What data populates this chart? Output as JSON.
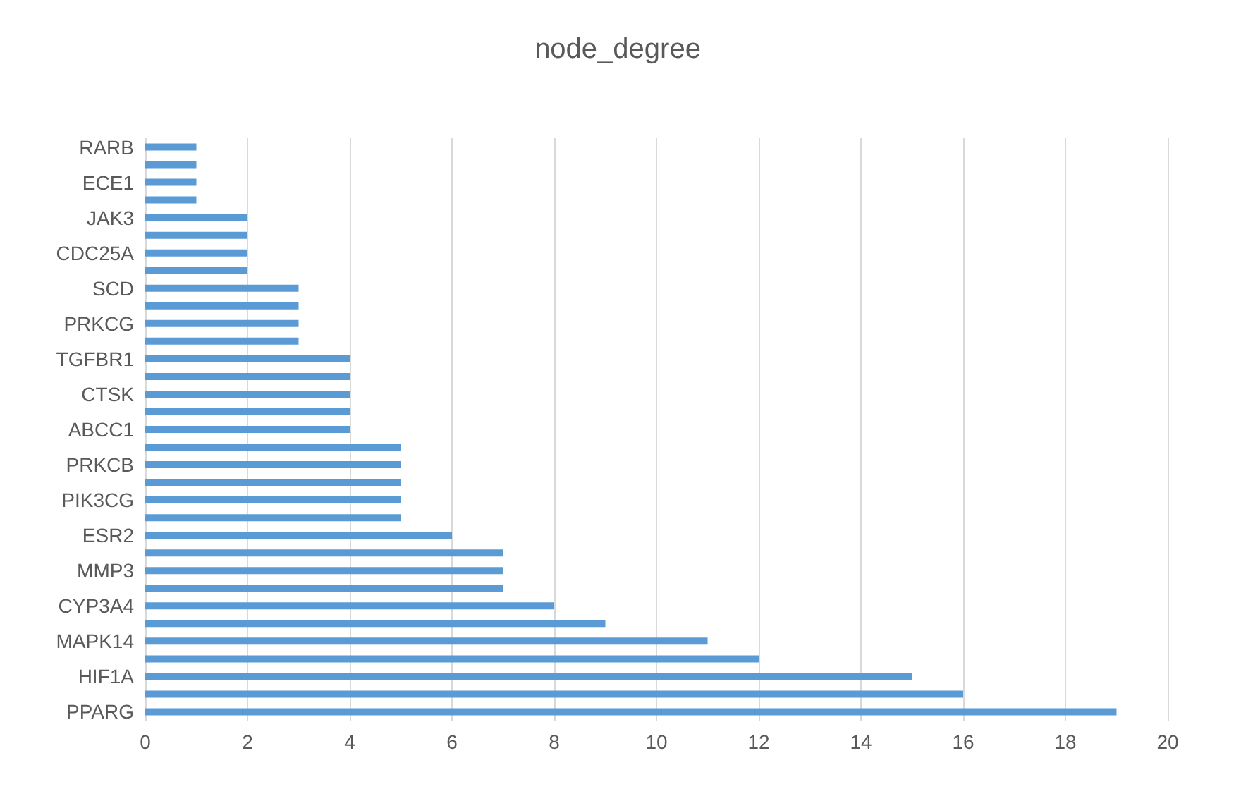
{
  "chart_data": {
    "type": "bar",
    "orientation": "horizontal",
    "title": "node_degree",
    "categories": [
      "RARB",
      null,
      "ECE1",
      null,
      "JAK3",
      null,
      "CDC25A",
      null,
      "SCD",
      null,
      "PRKCG",
      null,
      "TGFBR1",
      null,
      "CTSK",
      null,
      "ABCC1",
      null,
      "PRKCB",
      null,
      "PIK3CG",
      null,
      "ESR2",
      null,
      "MMP3",
      null,
      "CYP3A4",
      null,
      "MAPK14",
      null,
      "HIF1A",
      null,
      "PPARG"
    ],
    "values": [
      1,
      1,
      1,
      1,
      2,
      2,
      2,
      2,
      3,
      3,
      3,
      3,
      4,
      4,
      4,
      4,
      4,
      5,
      5,
      5,
      5,
      5,
      6,
      7,
      7,
      7,
      8,
      9,
      11,
      12,
      15,
      16,
      19
    ],
    "color": "#5b9bd5",
    "xlim": [
      0,
      20
    ],
    "xticks": [
      0,
      2,
      4,
      6,
      8,
      10,
      12,
      14,
      16,
      18,
      20
    ],
    "grid": "x"
  }
}
